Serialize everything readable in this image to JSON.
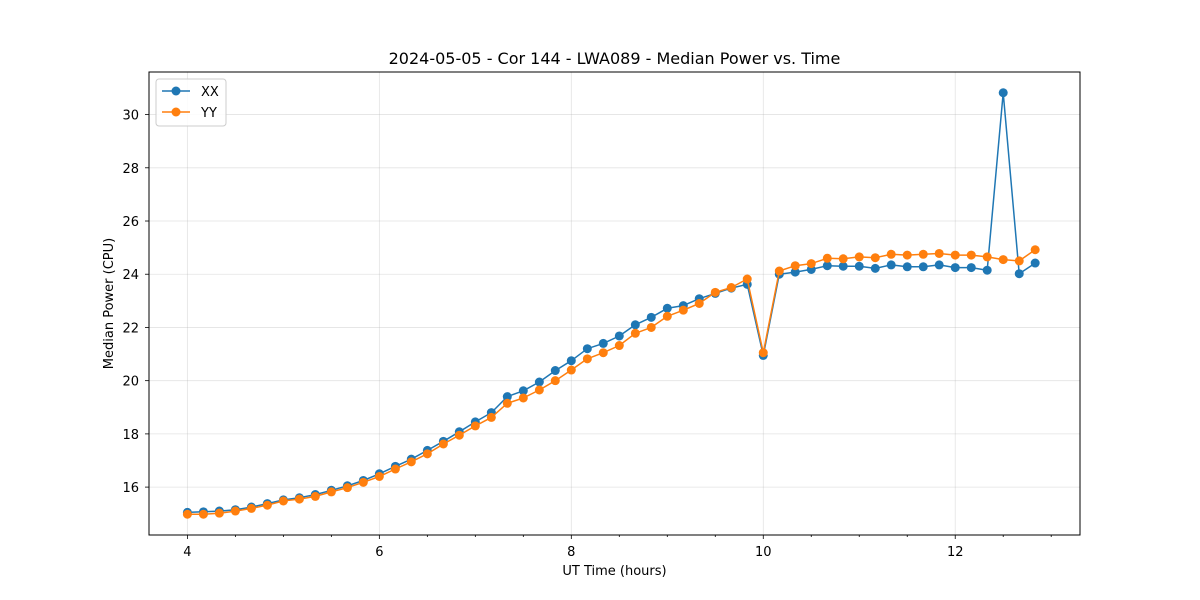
{
  "chart_data": {
    "type": "line",
    "title": "2024-05-05 - Cor 144 - LWA089 - Median Power vs. Time",
    "xlabel": "UT Time (hours)",
    "ylabel": "Median Power (CPU)",
    "xlim": [
      3.6,
      13.3
    ],
    "ylim": [
      14.2,
      31.6
    ],
    "xticks": [
      4,
      6,
      8,
      10,
      12
    ],
    "yticks": [
      16,
      18,
      20,
      22,
      24,
      26,
      28,
      30
    ],
    "x_minor_step": 0.5,
    "grid": true,
    "legend_position": "upper-left",
    "x": [
      4.0,
      4.167,
      4.333,
      4.5,
      4.667,
      4.833,
      5.0,
      5.167,
      5.333,
      5.5,
      5.667,
      5.833,
      6.0,
      6.167,
      6.333,
      6.5,
      6.667,
      6.833,
      7.0,
      7.167,
      7.333,
      7.5,
      7.667,
      7.833,
      8.0,
      8.167,
      8.333,
      8.5,
      8.667,
      8.833,
      9.0,
      9.167,
      9.333,
      9.5,
      9.667,
      9.833,
      10.0,
      10.167,
      10.333,
      10.5,
      10.667,
      10.833,
      11.0,
      11.167,
      11.333,
      11.5,
      11.667,
      11.833,
      12.0,
      12.167,
      12.333,
      12.5,
      12.667,
      12.833
    ],
    "series": [
      {
        "name": "XX",
        "color": "#1f77b4",
        "values": [
          15.05,
          15.07,
          15.1,
          15.15,
          15.25,
          15.38,
          15.52,
          15.6,
          15.72,
          15.88,
          16.05,
          16.25,
          16.5,
          16.78,
          17.05,
          17.38,
          17.72,
          18.08,
          18.45,
          18.8,
          19.4,
          19.62,
          19.95,
          20.38,
          20.75,
          21.2,
          21.4,
          21.68,
          22.1,
          22.38,
          22.72,
          22.82,
          23.08,
          23.28,
          23.48,
          23.62,
          20.95,
          24.0,
          24.08,
          24.18,
          24.32,
          24.3,
          24.3,
          24.22,
          24.35,
          24.28,
          24.28,
          24.35,
          24.25,
          24.25,
          24.15,
          30.82,
          24.02,
          24.42
        ]
      },
      {
        "name": "YY",
        "color": "#ff7f0e",
        "values": [
          14.98,
          14.98,
          15.02,
          15.1,
          15.2,
          15.32,
          15.48,
          15.55,
          15.65,
          15.82,
          15.98,
          16.18,
          16.4,
          16.68,
          16.95,
          17.25,
          17.62,
          17.95,
          18.3,
          18.62,
          19.15,
          19.35,
          19.65,
          20.0,
          20.4,
          20.82,
          21.05,
          21.32,
          21.78,
          22.0,
          22.42,
          22.65,
          22.9,
          23.32,
          23.5,
          23.82,
          21.05,
          24.12,
          24.32,
          24.4,
          24.6,
          24.58,
          24.65,
          24.62,
          24.75,
          24.72,
          24.75,
          24.78,
          24.72,
          24.72,
          24.65,
          24.55,
          24.5,
          24.92
        ]
      }
    ]
  }
}
